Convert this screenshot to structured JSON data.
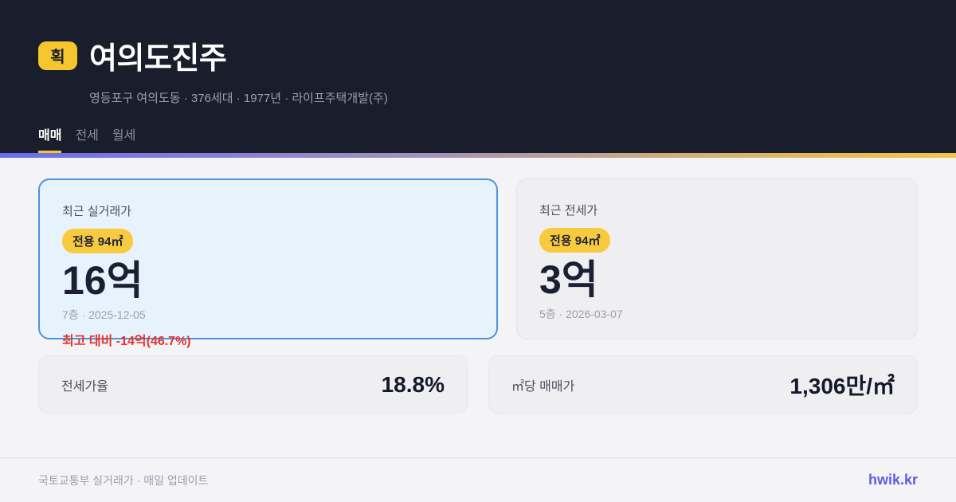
{
  "header": {
    "brand_badge": "획",
    "title": "여의도진주",
    "subtitle": "영등포구 여의도동 · 376세대 · 1977년 · 라이프주택개발(주)",
    "tabs": [
      {
        "label": "매매",
        "active": true
      },
      {
        "label": "전세",
        "active": false
      },
      {
        "label": "월세",
        "active": false
      }
    ]
  },
  "cards": {
    "sale": {
      "label": "최근 실거래가",
      "area_badge": "전용 94㎡",
      "price": "16억",
      "meta": "7층 · 2025-12-05",
      "delta": "최고 대비 -14억(46.7%)"
    },
    "jeonse": {
      "label": "최근 전세가",
      "area_badge": "전용 94㎡",
      "price": "3억",
      "meta": "5층 · 2026-03-07"
    }
  },
  "stats": [
    {
      "label": "전세가율",
      "value": "18.8%"
    },
    {
      "label": "㎡당 매매가",
      "value": "1,306만/㎡"
    }
  ],
  "footer": {
    "source": "국토교통부 실거래가 · 매일 업데이트",
    "brand": "hwik.kr"
  },
  "colors": {
    "header_bg": "#1a1d2b",
    "accent_yellow": "#f5c62e",
    "primary_card_bg": "#e6f2fc",
    "primary_card_border": "#4d94db",
    "secondary_card_bg": "#efeff1",
    "negative_red": "#e7332d",
    "brand_purple": "#5b5fe8",
    "gradient_start": "#6a6cf0",
    "gradient_end": "#f2c641",
    "page_bg": "#f4f4f6"
  }
}
